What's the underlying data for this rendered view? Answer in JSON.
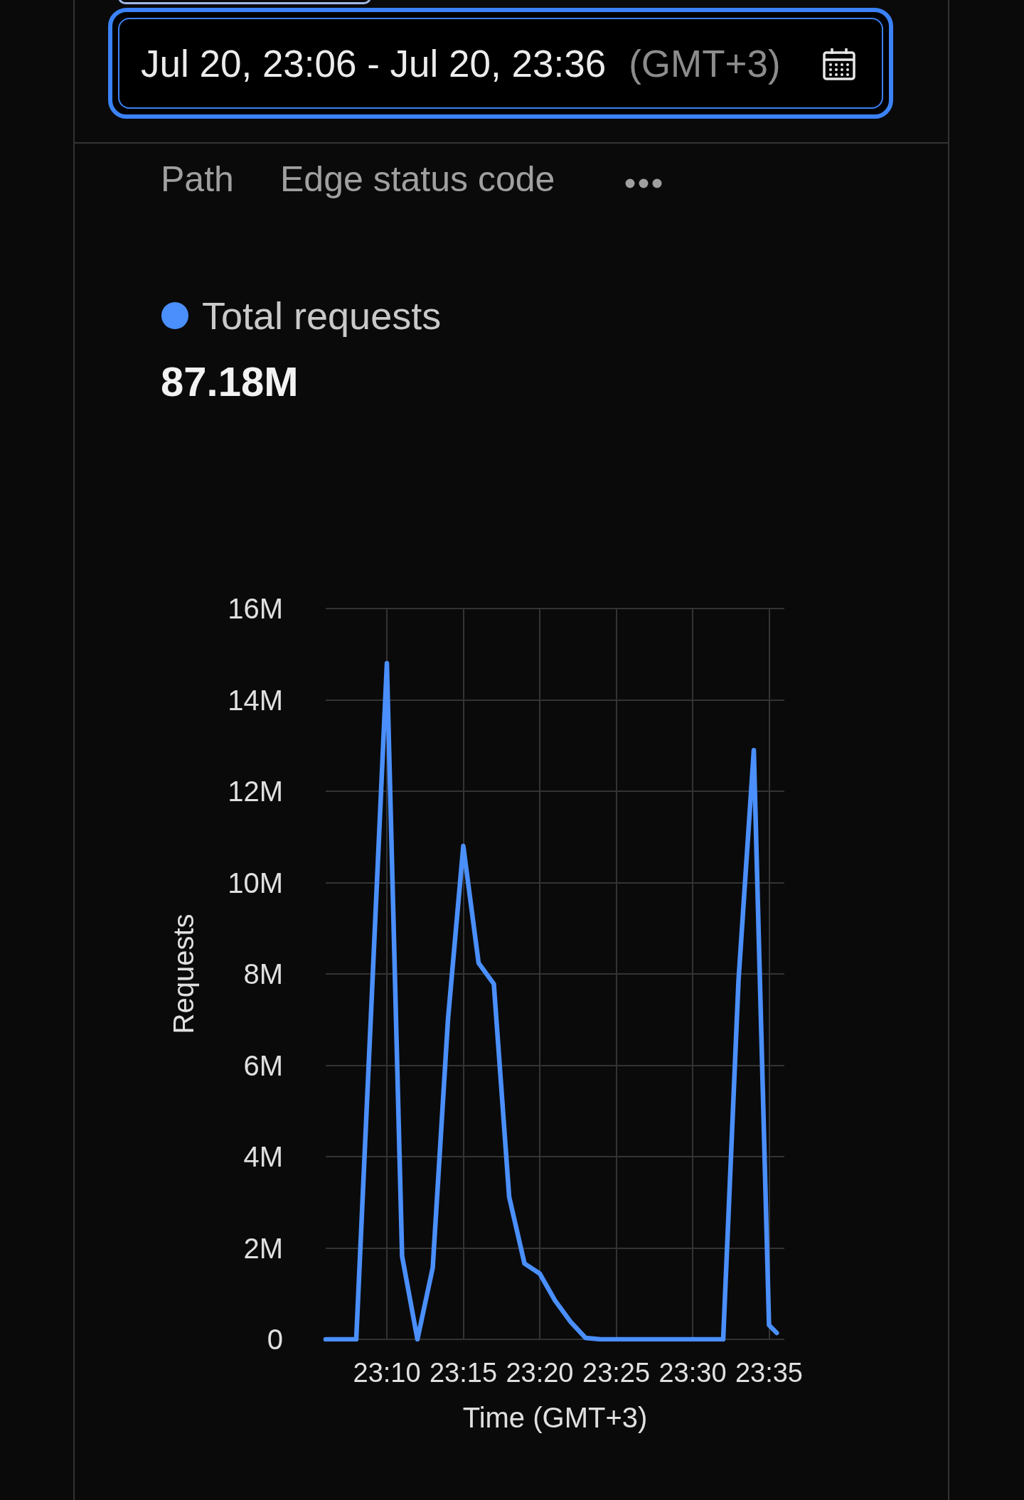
{
  "chart_data": {
    "type": "line",
    "xlabel": "Time (GMT+3)",
    "ylabel": "Requests",
    "annotations": [
      "Jul 20, 23:06 - Jul 20, 23:36",
      "(GMT+3)",
      "Path",
      "Edge status code",
      "87.18M"
    ],
    "x": [
      23.1,
      23.1167,
      23.1333,
      23.15,
      23.1667,
      23.1833,
      23.2,
      23.2167,
      23.2333,
      23.25,
      23.2667,
      23.2833,
      23.3,
      23.3167,
      23.3333,
      23.35,
      23.3667,
      23.3833,
      23.4,
      23.4167,
      23.4333,
      23.45,
      23.4667,
      23.4833,
      23.5,
      23.5167,
      23.5333,
      23.55,
      23.5667,
      23.5833,
      23.5917
    ],
    "series": [
      {
        "name": "Total requests",
        "color": "#4a8ffb",
        "values": [
          0,
          0,
          0,
          7.4,
          14.8,
          1.82,
          0,
          1.57,
          7.0,
          10.8,
          8.24,
          7.78,
          3.12,
          1.66,
          1.44,
          0.85,
          0.39,
          0.03,
          0,
          0,
          0,
          0,
          0,
          0,
          0,
          0,
          0,
          7.85,
          12.9,
          0.31,
          0.14
        ]
      }
    ],
    "xlim": [
      23.1,
      23.6
    ],
    "xticks": [
      {
        "value": 23.1667,
        "label": "23:10"
      },
      {
        "value": 23.25,
        "label": "23:15"
      },
      {
        "value": 23.3333,
        "label": "23:20"
      },
      {
        "value": 23.4167,
        "label": "23:25"
      },
      {
        "value": 23.5,
        "label": "23:30"
      },
      {
        "value": 23.5833,
        "label": "23:35"
      }
    ],
    "ylim": [
      0,
      16
    ],
    "yticks": [
      0,
      {
        "value": 2,
        "label": "2M"
      },
      {
        "value": 4,
        "label": "4M"
      },
      {
        "value": 6,
        "label": "6M"
      },
      {
        "value": 8,
        "label": "8M"
      },
      {
        "value": 10,
        "label": "10M"
      },
      {
        "value": 12,
        "label": "12M"
      },
      {
        "value": 14,
        "label": "14M"
      },
      {
        "value": 16,
        "label": "16M"
      }
    ],
    "grid": true,
    "legend": "top left",
    "marker": "none",
    "line_style": "solid"
  }
}
